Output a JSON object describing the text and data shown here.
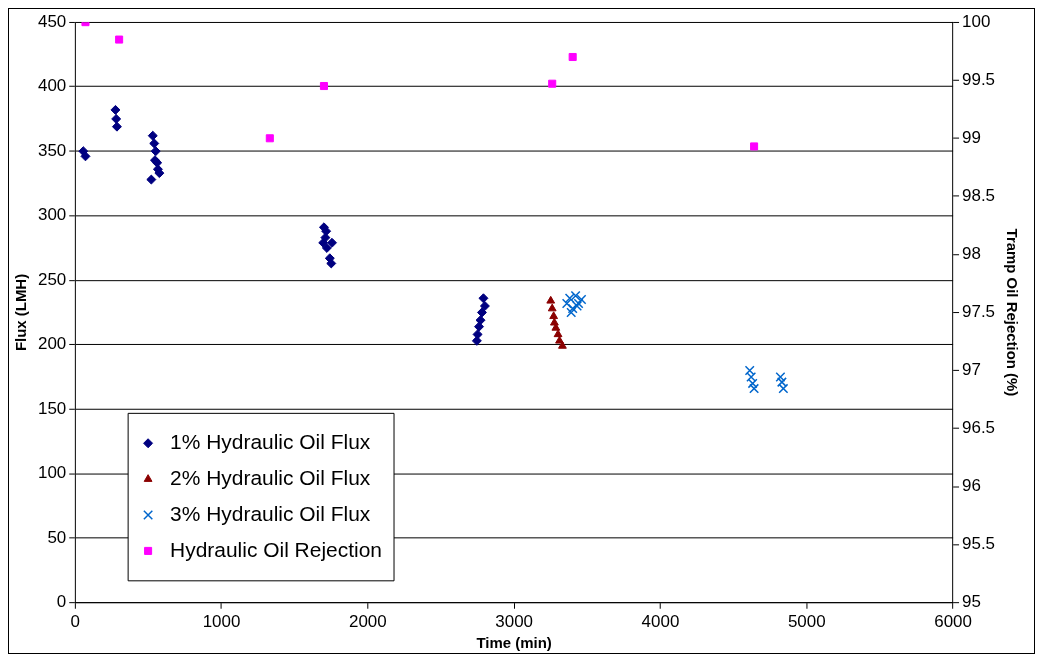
{
  "chart_data": {
    "type": "scatter",
    "xlabel": "Time (min)",
    "ylabel": "Flux (LMH)",
    "y2label": "Tramp Oil Rejection (%)",
    "xlim": [
      0,
      6000
    ],
    "xticks": [
      0,
      1000,
      2000,
      3000,
      4000,
      5000,
      6000
    ],
    "ylim": [
      0,
      450
    ],
    "yticks": [
      0,
      50,
      100,
      150,
      200,
      250,
      300,
      350,
      400,
      450
    ],
    "y2lim": [
      95,
      100
    ],
    "y2ticks": [
      95,
      95.5,
      96,
      96.5,
      97,
      97.5,
      98,
      98.5,
      99,
      99.5,
      100
    ],
    "grid": "y",
    "legend": "bottom left",
    "series": [
      {
        "name": "1% Hydraulic Oil Flux",
        "color": "#000080",
        "marker": "diamond",
        "x": [
          55,
          70,
          275,
          280,
          285,
          530,
          540,
          550,
          545,
          560,
          565,
          575,
          520,
          1700,
          1715,
          1710,
          1695,
          1720,
          1755,
          1740,
          1750,
          2790,
          2800,
          2780,
          2770,
          2760,
          2750,
          2745
        ],
        "values": [
          350,
          346,
          382,
          375,
          369,
          362,
          356,
          350,
          343,
          341,
          336,
          333,
          328,
          291,
          288,
          283,
          279,
          275,
          279,
          267,
          263,
          236,
          230,
          225,
          219,
          214,
          208,
          203
        ]
      },
      {
        "name": "2% Hydraulic Oil Flux",
        "color": "#8b0000",
        "marker": "triangle",
        "x": [
          3250,
          3260,
          3270,
          3275,
          3285,
          3300,
          3310,
          3330
        ],
        "values": [
          234,
          228,
          222,
          217,
          213,
          208,
          203,
          199
        ]
      },
      {
        "name": "3% Hydraulic Oil Flux",
        "color": "#0066cc",
        "marker": "cross",
        "x": [
          3360,
          3380,
          3400,
          3420,
          3440,
          3460,
          3390,
          3430,
          4610,
          4620,
          4630,
          4640,
          4820,
          4830,
          4840
        ],
        "values": [
          232,
          236,
          228,
          238,
          232,
          235,
          225,
          230,
          180,
          175,
          170,
          166,
          175,
          171,
          166
        ]
      },
      {
        "name": "Hydraulic Oil Rejection",
        "color": "#ff00ff",
        "marker": "square",
        "axis": "y2",
        "x": [
          70,
          300,
          1330,
          1700,
          3260,
          3400,
          4640
        ],
        "values": [
          100,
          99.85,
          99,
          99.45,
          99.47,
          99.7,
          98.93
        ]
      }
    ]
  }
}
